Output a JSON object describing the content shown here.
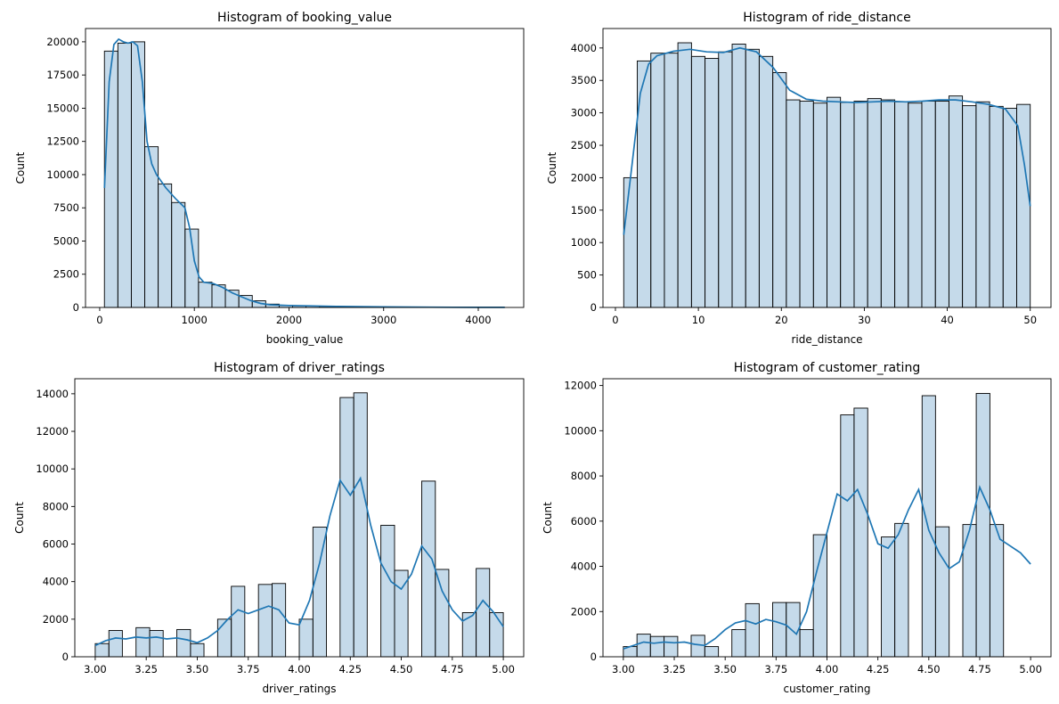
{
  "chart_data": [
    {
      "type": "bar",
      "title": "Histogram of booking_value",
      "xlabel": "booking_value",
      "ylabel": "Count",
      "xlim": [
        -150,
        4480
      ],
      "ylim": [
        0,
        21000
      ],
      "xticks": [
        0,
        1000,
        2000,
        3000,
        4000
      ],
      "yticks": [
        0,
        2500,
        5000,
        7500,
        10000,
        12500,
        15000,
        17500,
        20000
      ],
      "bar_color": "#8cb5d6",
      "kde_color": "#1f77b4",
      "bins": [
        [
          50,
          192,
          19300
        ],
        [
          192,
          334,
          19900
        ],
        [
          334,
          476,
          20000
        ],
        [
          476,
          618,
          12100
        ],
        [
          618,
          760,
          9300
        ],
        [
          760,
          902,
          7900
        ],
        [
          902,
          1044,
          5900
        ],
        [
          1044,
          1186,
          1900
        ],
        [
          1186,
          1328,
          1700
        ],
        [
          1328,
          1470,
          1300
        ],
        [
          1470,
          1612,
          900
        ],
        [
          1612,
          1754,
          500
        ],
        [
          1754,
          1896,
          250
        ],
        [
          1896,
          2038,
          150
        ],
        [
          2038,
          2180,
          120
        ],
        [
          2180,
          2322,
          100
        ],
        [
          2322,
          2464,
          80
        ],
        [
          2464,
          2606,
          50
        ],
        [
          2606,
          2748,
          40
        ],
        [
          2748,
          2890,
          30
        ],
        [
          2890,
          3032,
          30
        ],
        [
          3032,
          3174,
          25
        ],
        [
          3174,
          3316,
          20
        ],
        [
          3316,
          3458,
          15
        ],
        [
          3458,
          3600,
          15
        ],
        [
          3600,
          3742,
          10
        ],
        [
          3742,
          3884,
          10
        ],
        [
          3884,
          4026,
          8
        ],
        [
          4026,
          4168,
          5
        ],
        [
          4168,
          4280,
          5
        ]
      ],
      "kde": [
        [
          50,
          9000
        ],
        [
          100,
          17000
        ],
        [
          150,
          19800
        ],
        [
          200,
          20200
        ],
        [
          250,
          20000
        ],
        [
          300,
          19900
        ],
        [
          350,
          20000
        ],
        [
          400,
          19700
        ],
        [
          450,
          17000
        ],
        [
          500,
          12500
        ],
        [
          550,
          10800
        ],
        [
          600,
          10000
        ],
        [
          700,
          9000
        ],
        [
          800,
          8200
        ],
        [
          900,
          7500
        ],
        [
          950,
          6000
        ],
        [
          1000,
          3500
        ],
        [
          1050,
          2300
        ],
        [
          1100,
          1900
        ],
        [
          1200,
          1800
        ],
        [
          1300,
          1500
        ],
        [
          1400,
          1100
        ],
        [
          1500,
          800
        ],
        [
          1600,
          500
        ],
        [
          1700,
          300
        ],
        [
          1800,
          200
        ],
        [
          2000,
          150
        ],
        [
          2200,
          120
        ],
        [
          2500,
          80
        ],
        [
          3000,
          40
        ],
        [
          3500,
          20
        ],
        [
          4000,
          10
        ],
        [
          4280,
          5
        ]
      ]
    },
    {
      "type": "bar",
      "title": "Histogram of ride_distance",
      "xlabel": "ride_distance",
      "ylabel": "Count",
      "xlim": [
        -1.5,
        52.5
      ],
      "ylim": [
        0,
        4300
      ],
      "xticks": [
        0,
        10,
        20,
        30,
        40,
        50
      ],
      "yticks": [
        0,
        500,
        1000,
        1500,
        2000,
        2500,
        3000,
        3500,
        4000
      ],
      "bar_color": "#8cb5d6",
      "kde_color": "#1f77b4",
      "bins": [
        [
          1.0,
          2.63,
          2000
        ],
        [
          2.63,
          4.27,
          3800
        ],
        [
          4.27,
          5.9,
          3920
        ],
        [
          5.9,
          7.53,
          3920
        ],
        [
          7.53,
          9.17,
          4080
        ],
        [
          9.17,
          10.8,
          3870
        ],
        [
          10.8,
          12.43,
          3840
        ],
        [
          12.43,
          14.07,
          3940
        ],
        [
          14.07,
          15.7,
          4060
        ],
        [
          15.7,
          17.33,
          3980
        ],
        [
          17.33,
          18.97,
          3870
        ],
        [
          18.97,
          20.6,
          3620
        ],
        [
          20.6,
          22.23,
          3200
        ],
        [
          22.23,
          23.87,
          3180
        ],
        [
          23.87,
          25.5,
          3150
        ],
        [
          25.5,
          27.13,
          3240
        ],
        [
          27.13,
          28.77,
          3160
        ],
        [
          28.77,
          30.4,
          3180
        ],
        [
          30.4,
          32.03,
          3220
        ],
        [
          32.03,
          33.67,
          3200
        ],
        [
          33.67,
          35.3,
          3170
        ],
        [
          35.3,
          36.93,
          3150
        ],
        [
          36.93,
          38.57,
          3180
        ],
        [
          38.57,
          40.2,
          3180
        ],
        [
          40.2,
          41.83,
          3260
        ],
        [
          41.83,
          43.47,
          3110
        ],
        [
          43.47,
          45.1,
          3170
        ],
        [
          45.1,
          46.73,
          3100
        ],
        [
          46.73,
          48.37,
          3070
        ],
        [
          48.37,
          50.0,
          3130
        ]
      ],
      "kde": [
        [
          1.0,
          1120
        ],
        [
          2.0,
          2200
        ],
        [
          3.0,
          3300
        ],
        [
          4.0,
          3750
        ],
        [
          5.0,
          3880
        ],
        [
          7.0,
          3950
        ],
        [
          9.0,
          3980
        ],
        [
          11.0,
          3940
        ],
        [
          13.0,
          3930
        ],
        [
          15.0,
          4000
        ],
        [
          17.0,
          3940
        ],
        [
          19.0,
          3700
        ],
        [
          21.0,
          3350
        ],
        [
          23.0,
          3210
        ],
        [
          25.0,
          3180
        ],
        [
          27.0,
          3170
        ],
        [
          29.0,
          3160
        ],
        [
          31.0,
          3170
        ],
        [
          33.0,
          3180
        ],
        [
          35.0,
          3170
        ],
        [
          37.0,
          3180
        ],
        [
          39.0,
          3200
        ],
        [
          41.0,
          3200
        ],
        [
          43.0,
          3170
        ],
        [
          45.0,
          3130
        ],
        [
          47.0,
          3060
        ],
        [
          48.5,
          2800
        ],
        [
          49.3,
          2200
        ],
        [
          50.0,
          1560
        ]
      ]
    },
    {
      "type": "bar",
      "title": "Histogram of driver_ratings",
      "xlabel": "driver_ratings",
      "ylabel": "Count",
      "xlim": [
        2.9,
        5.1
      ],
      "ylim": [
        0,
        14800
      ],
      "xticks": [
        "3.00",
        "3.25",
        "3.50",
        "3.75",
        "4.00",
        "4.25",
        "4.50",
        "4.75",
        "5.00"
      ],
      "yticks": [
        0,
        2000,
        4000,
        6000,
        8000,
        10000,
        12000,
        14000
      ],
      "bar_color": "#8cb5d6",
      "kde_color": "#1f77b4",
      "bins": [
        [
          3.0,
          3.067,
          700
        ],
        [
          3.067,
          3.133,
          1400
        ],
        [
          3.2,
          3.267,
          1550
        ],
        [
          3.267,
          3.333,
          1400
        ],
        [
          3.4,
          3.467,
          1450
        ],
        [
          3.467,
          3.533,
          700
        ],
        [
          3.6,
          3.667,
          2000
        ],
        [
          3.667,
          3.733,
          3750
        ],
        [
          3.8,
          3.867,
          3850
        ],
        [
          3.867,
          3.933,
          3900
        ],
        [
          4.0,
          4.067,
          2000
        ],
        [
          4.067,
          4.133,
          6900
        ],
        [
          4.2,
          4.267,
          13800
        ],
        [
          4.267,
          4.333,
          14050
        ],
        [
          4.4,
          4.467,
          7000
        ],
        [
          4.467,
          4.533,
          4600
        ],
        [
          4.6,
          4.667,
          9350
        ],
        [
          4.667,
          4.733,
          4650
        ],
        [
          4.8,
          4.867,
          2350
        ],
        [
          4.867,
          4.933,
          4700
        ],
        [
          4.933,
          5.0,
          2350
        ]
      ],
      "kde": [
        [
          3.0,
          600
        ],
        [
          3.05,
          850
        ],
        [
          3.1,
          1000
        ],
        [
          3.15,
          950
        ],
        [
          3.2,
          1050
        ],
        [
          3.25,
          1000
        ],
        [
          3.3,
          1050
        ],
        [
          3.35,
          950
        ],
        [
          3.4,
          1000
        ],
        [
          3.45,
          900
        ],
        [
          3.5,
          750
        ],
        [
          3.55,
          1000
        ],
        [
          3.6,
          1400
        ],
        [
          3.65,
          2000
        ],
        [
          3.7,
          2500
        ],
        [
          3.75,
          2300
        ],
        [
          3.8,
          2500
        ],
        [
          3.85,
          2700
        ],
        [
          3.9,
          2500
        ],
        [
          3.95,
          1800
        ],
        [
          4.0,
          1700
        ],
        [
          4.05,
          3000
        ],
        [
          4.1,
          5000
        ],
        [
          4.15,
          7500
        ],
        [
          4.2,
          9400
        ],
        [
          4.25,
          8600
        ],
        [
          4.3,
          9500
        ],
        [
          4.35,
          7000
        ],
        [
          4.4,
          5000
        ],
        [
          4.45,
          4000
        ],
        [
          4.5,
          3600
        ],
        [
          4.55,
          4400
        ],
        [
          4.6,
          5900
        ],
        [
          4.65,
          5200
        ],
        [
          4.7,
          3500
        ],
        [
          4.75,
          2500
        ],
        [
          4.8,
          1900
        ],
        [
          4.85,
          2200
        ],
        [
          4.9,
          3000
        ],
        [
          4.95,
          2400
        ],
        [
          5.0,
          1600
        ]
      ]
    },
    {
      "type": "bar",
      "title": "Histogram of customer_rating",
      "xlabel": "customer_rating",
      "ylabel": "Count",
      "xlim": [
        2.9,
        5.1
      ],
      "ylim": [
        0,
        12300
      ],
      "xticks": [
        "3.00",
        "3.25",
        "3.50",
        "3.75",
        "4.00",
        "4.25",
        "4.50",
        "4.75",
        "5.00"
      ],
      "yticks": [
        0,
        2000,
        4000,
        6000,
        8000,
        10000,
        12000
      ],
      "bar_color": "#8cb5d6",
      "kde_color": "#1f77b4",
      "bins": [
        [
          3.0,
          3.067,
          450
        ],
        [
          3.067,
          3.133,
          1000
        ],
        [
          3.133,
          3.2,
          900
        ],
        [
          3.2,
          3.267,
          900
        ],
        [
          3.333,
          3.4,
          950
        ],
        [
          3.4,
          3.467,
          450
        ],
        [
          3.533,
          3.6,
          1200
        ],
        [
          3.6,
          3.667,
          2350
        ],
        [
          3.733,
          3.8,
          2400
        ],
        [
          3.8,
          3.867,
          2400
        ],
        [
          3.867,
          3.933,
          1200
        ],
        [
          3.933,
          4.0,
          5400
        ],
        [
          4.067,
          4.133,
          10700
        ],
        [
          4.133,
          4.2,
          11000
        ],
        [
          4.267,
          4.333,
          5300
        ],
        [
          4.333,
          4.4,
          5900
        ],
        [
          4.467,
          4.533,
          11550
        ],
        [
          4.533,
          4.6,
          5750
        ],
        [
          4.667,
          4.733,
          5850
        ],
        [
          4.733,
          4.8,
          11650
        ],
        [
          4.8,
          4.867,
          5850
        ]
      ],
      "kde": [
        [
          3.0,
          350
        ],
        [
          3.05,
          500
        ],
        [
          3.1,
          650
        ],
        [
          3.15,
          600
        ],
        [
          3.2,
          650
        ],
        [
          3.25,
          620
        ],
        [
          3.3,
          650
        ],
        [
          3.35,
          550
        ],
        [
          3.4,
          500
        ],
        [
          3.45,
          800
        ],
        [
          3.5,
          1200
        ],
        [
          3.55,
          1500
        ],
        [
          3.6,
          1600
        ],
        [
          3.65,
          1450
        ],
        [
          3.7,
          1650
        ],
        [
          3.75,
          1550
        ],
        [
          3.8,
          1400
        ],
        [
          3.85,
          1000
        ],
        [
          3.9,
          2000
        ],
        [
          3.95,
          3800
        ],
        [
          4.0,
          5500
        ],
        [
          4.05,
          7200
        ],
        [
          4.1,
          6900
        ],
        [
          4.15,
          7400
        ],
        [
          4.2,
          6300
        ],
        [
          4.25,
          5000
        ],
        [
          4.3,
          4800
        ],
        [
          4.35,
          5400
        ],
        [
          4.4,
          6500
        ],
        [
          4.45,
          7400
        ],
        [
          4.5,
          5600
        ],
        [
          4.55,
          4600
        ],
        [
          4.6,
          3900
        ],
        [
          4.65,
          4200
        ],
        [
          4.7,
          5600
        ],
        [
          4.75,
          7500
        ],
        [
          4.8,
          6500
        ],
        [
          4.85,
          5200
        ],
        [
          4.9,
          4900
        ],
        [
          4.95,
          4600
        ],
        [
          5.0,
          4100
        ]
      ]
    }
  ]
}
